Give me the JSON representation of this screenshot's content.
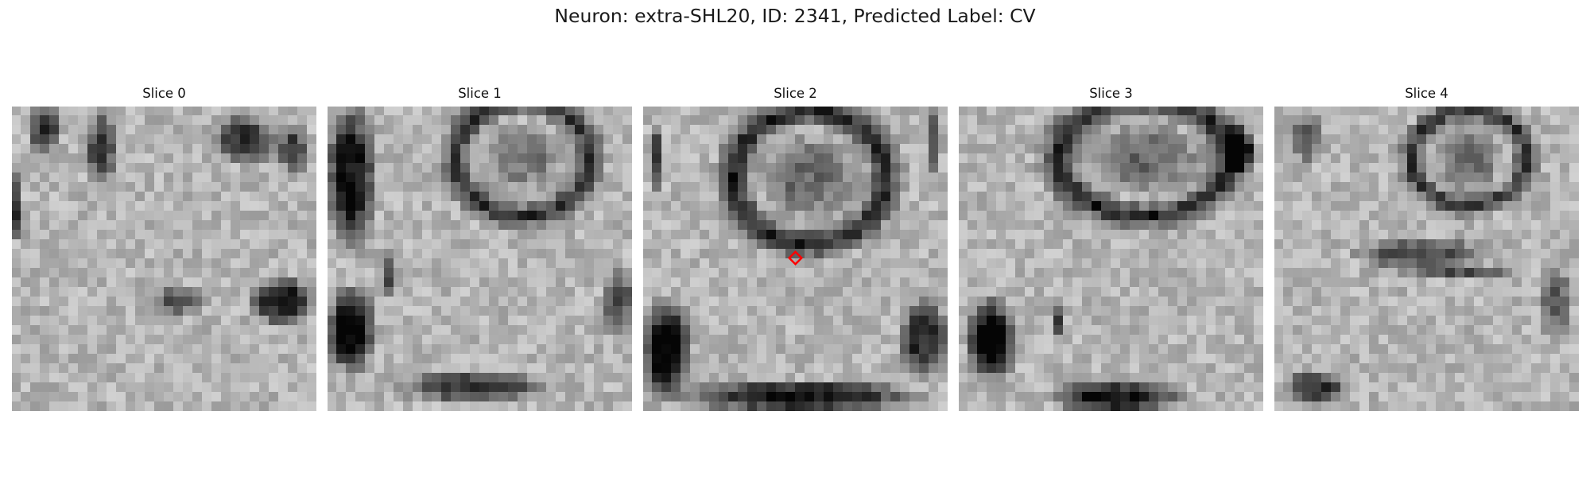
{
  "figure": {
    "title": "Neuron: extra-SHL20, ID: 2341, Predicted Label: CV"
  },
  "slices": [
    {
      "label": "Slice 0",
      "has_marker": false
    },
    {
      "label": "Slice 1",
      "has_marker": false
    },
    {
      "label": "Slice 2",
      "has_marker": true
    },
    {
      "label": "Slice 3",
      "has_marker": false
    },
    {
      "label": "Slice 4",
      "has_marker": false
    }
  ],
  "colors": {
    "marker": "#ff0000",
    "background": "#ffffff"
  }
}
